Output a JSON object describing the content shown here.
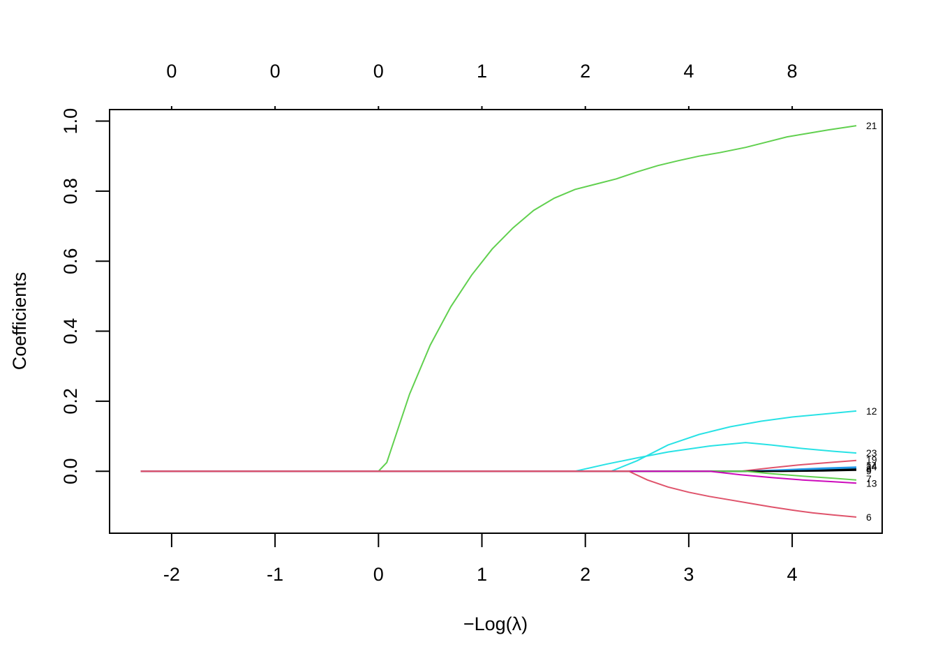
{
  "chart_data": {
    "type": "line",
    "title": "",
    "xlabel": "−Log(λ)",
    "xlabel_prefix": "−",
    "xlabel_main": "Log(λ)",
    "ylabel": "Coefficients",
    "xlim": [
      -2.6,
      4.87
    ],
    "ylim": [
      -0.177,
      1.033
    ],
    "x_ticks": [
      -2,
      -1,
      0,
      1,
      2,
      3,
      4
    ],
    "y_ticks": [
      0.0,
      0.2,
      0.4,
      0.6,
      0.8,
      1.0
    ],
    "x_tick_labels": [
      "-2",
      "-1",
      "0",
      "1",
      "2",
      "3",
      "4"
    ],
    "y_tick_labels": [
      "0.0",
      "0.2",
      "0.4",
      "0.6",
      "0.8",
      "1.0"
    ],
    "top_axis": {
      "positions": [
        -2,
        -1,
        0,
        1,
        2,
        3,
        4
      ],
      "labels": [
        "0",
        "0",
        "0",
        "1",
        "2",
        "4",
        "8"
      ]
    },
    "grid": false,
    "legend": "none",
    "series": [
      {
        "name": "21",
        "color": "#61D04F",
        "x": [
          -2.3,
          0.0,
          0.08,
          0.3,
          0.5,
          0.7,
          0.9,
          1.1,
          1.3,
          1.5,
          1.7,
          1.9,
          2.1,
          2.3,
          2.5,
          2.7,
          2.9,
          3.1,
          3.3,
          3.55,
          3.75,
          3.95,
          4.15,
          4.35,
          4.62
        ],
        "y": [
          0,
          0,
          0.025,
          0.22,
          0.36,
          0.47,
          0.56,
          0.635,
          0.695,
          0.745,
          0.78,
          0.805,
          0.82,
          0.835,
          0.855,
          0.873,
          0.887,
          0.9,
          0.91,
          0.925,
          0.94,
          0.955,
          0.965,
          0.975,
          0.987
        ]
      },
      {
        "name": "12",
        "color": "#28E2E5",
        "x": [
          -2.3,
          2.25,
          2.5,
          2.8,
          3.1,
          3.4,
          3.7,
          4.0,
          4.3,
          4.62
        ],
        "y": [
          0,
          0,
          0.03,
          0.075,
          0.105,
          0.127,
          0.143,
          0.155,
          0.163,
          0.172
        ]
      },
      {
        "name": "23",
        "color": "#28E2E5",
        "x": [
          -2.3,
          1.9,
          2.2,
          2.5,
          2.8,
          3.2,
          3.55,
          3.8,
          4.1,
          4.4,
          4.62
        ],
        "y": [
          0,
          0,
          0.02,
          0.038,
          0.055,
          0.072,
          0.082,
          0.075,
          0.065,
          0.057,
          0.052
        ]
      },
      {
        "name": "19",
        "color": "#DF536B",
        "x": [
          -2.3,
          3.5,
          3.8,
          4.1,
          4.4,
          4.62
        ],
        "y": [
          0,
          0,
          0.01,
          0.019,
          0.026,
          0.031
        ]
      },
      {
        "name": "14",
        "color": "#2297E6",
        "x": [
          -2.3,
          3.55,
          3.9,
          4.3,
          4.62
        ],
        "y": [
          0,
          0,
          0.004,
          0.009,
          0.012
        ]
      },
      {
        "name": "24",
        "color": "#2297E6",
        "x": [
          -2.3,
          3.7,
          4.1,
          4.4,
          4.62
        ],
        "y": [
          0,
          0,
          0.004,
          0.007,
          0.009
        ]
      },
      {
        "name": "8",
        "color": "#000000",
        "x": [
          -2.3,
          3.9,
          4.2,
          4.4,
          4.62
        ],
        "y": [
          0,
          0,
          0.002,
          0.004,
          0.006
        ]
      },
      {
        "name": "9",
        "color": "#000000",
        "x": [
          -2.3,
          4.0,
          4.3,
          4.62
        ],
        "y": [
          0,
          0,
          0.001,
          0.003
        ]
      },
      {
        "name": "7",
        "color": "#61D04F",
        "x": [
          -2.3,
          3.55,
          3.8,
          4.1,
          4.4,
          4.62
        ],
        "y": [
          0,
          0,
          -0.007,
          -0.014,
          -0.02,
          -0.025
        ]
      },
      {
        "name": "13",
        "color": "#CD0BBC",
        "x": [
          -2.3,
          3.2,
          3.5,
          3.8,
          4.1,
          4.4,
          4.62
        ],
        "y": [
          0,
          0,
          -0.01,
          -0.018,
          -0.025,
          -0.03,
          -0.034
        ]
      },
      {
        "name": "6",
        "color": "#DF536B",
        "x": [
          -2.3,
          2.42,
          2.6,
          2.8,
          3.0,
          3.2,
          3.4,
          3.6,
          3.8,
          4.0,
          4.2,
          4.4,
          4.62
        ],
        "y": [
          0,
          0,
          -0.025,
          -0.045,
          -0.06,
          -0.072,
          -0.082,
          -0.092,
          -0.102,
          -0.111,
          -0.119,
          -0.125,
          -0.131
        ]
      }
    ],
    "end_labels": [
      {
        "text": "21",
        "y": 0.987
      },
      {
        "text": "12",
        "y": 0.172
      },
      {
        "text": "23",
        "y": 0.052
      },
      {
        "text": "19",
        "y": 0.033
      },
      {
        "text": "14",
        "y": 0.016
      },
      {
        "text": "24",
        "y": 0.012
      },
      {
        "text": "8",
        "y": 0.006
      },
      {
        "text": "9",
        "y": 0.001
      },
      {
        "text": "7",
        "y": -0.022
      },
      {
        "text": "13",
        "y": -0.034
      },
      {
        "text": "6",
        "y": -0.131
      }
    ]
  }
}
